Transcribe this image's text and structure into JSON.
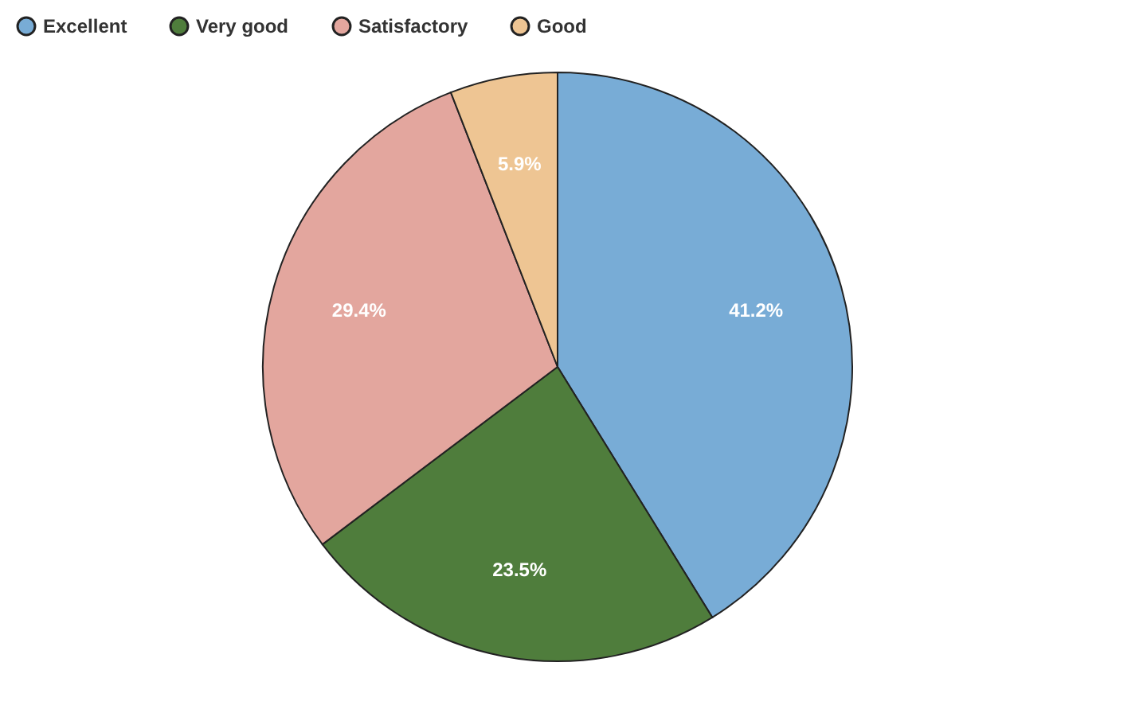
{
  "chart_data": {
    "type": "pie",
    "categories": [
      "Excellent",
      "Very good",
      "Satisfactory",
      "Good"
    ],
    "values": [
      41.2,
      23.5,
      29.4,
      5.9
    ],
    "colors": [
      "#78acd6",
      "#4f7d3c",
      "#e3a69e",
      "#eec593"
    ],
    "value_labels": [
      "41.2%",
      "23.5%",
      "29.4%",
      "5.9%"
    ],
    "legend": "top"
  }
}
